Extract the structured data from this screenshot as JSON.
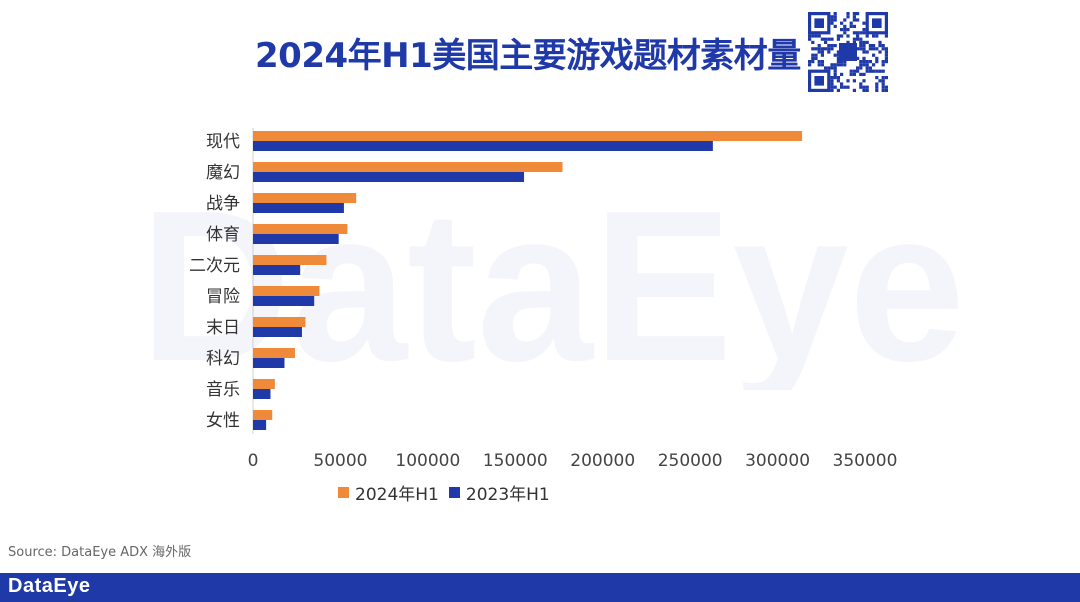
{
  "header": {
    "title": "2024年H1美国主要游戏题材素材量",
    "qr_icon": "qr-code-icon"
  },
  "watermark": {
    "text": "DataEye"
  },
  "source": "Source: DataEye ADX 海外版",
  "footer": {
    "logo_text": "DataEye"
  },
  "colors": {
    "series_2024": "#ee8a3a",
    "series_2023": "#1f3aa8",
    "footer": "#1f3aa8",
    "title": "#1f3aa8"
  },
  "chart_data": {
    "type": "bar",
    "orientation": "horizontal",
    "title": "2024年H1美国主要游戏题材素材量",
    "categories": [
      "现代",
      "魔幻",
      "战争",
      "体育",
      "二次元",
      "冒险",
      "末日",
      "科幻",
      "音乐",
      "女性"
    ],
    "series": [
      {
        "name": "2024年H1",
        "values": [
          314000,
          177000,
          59000,
          54000,
          42000,
          38000,
          30000,
          24000,
          12500,
          11000
        ]
      },
      {
        "name": "2023年H1",
        "values": [
          263000,
          155000,
          52000,
          49000,
          27000,
          35000,
          28000,
          18000,
          10000,
          7500
        ]
      }
    ],
    "xlim": [
      0,
      350000
    ],
    "xticks": [
      "0",
      "50000",
      "100000",
      "150000",
      "200000",
      "250000",
      "300000",
      "350000"
    ],
    "grid": false,
    "legend_position": "bottom"
  }
}
